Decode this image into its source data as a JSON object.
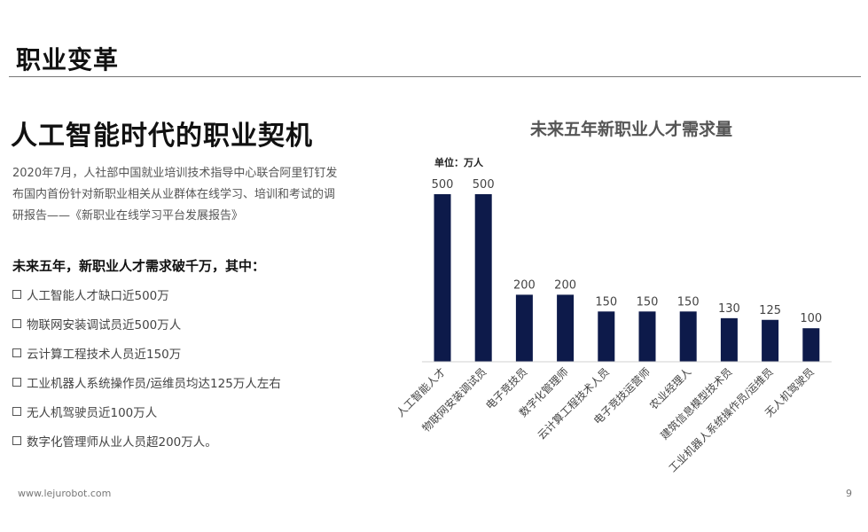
{
  "header": {
    "title": "职业变革"
  },
  "main": {
    "heading": "人工智能时代的职业契机",
    "intro_lines": [
      "2020年7月，人社部中国就业培训技术指导中心联合阿里钉钉发",
      "布国内首份针对新职业相关从业群体在线学习、培训和考试的调",
      "研报告——《新职业在线学习平台发展报告》"
    ],
    "subheading": "未来五年，新职业人才需求破千万，其中：",
    "bullets": [
      "人工智能人才缺口近500万",
      "物联网安装调试员近500万人",
      "云计算工程技术人员近150万",
      "工业机器人系统操作员/运维员均达125万人左右",
      "无人机驾驶员近100万人",
      "数字化管理师从业人员超200万人。"
    ]
  },
  "footer": {
    "url": "www.lejurobot.com",
    "page": "9"
  },
  "chart_data": {
    "type": "bar",
    "title": "未来五年新职业人才需求量",
    "unit_label": "单位：万人",
    "categories": [
      "人工智能人才",
      "物联网安装调试员",
      "电子竞技员",
      "数字化管理师",
      "云计算工程技术人员",
      "电子竞技运营师",
      "农业经理人",
      "建筑信息模型技术员",
      "工业机器人系统操作员/运维员",
      "无人机驾驶员"
    ],
    "values": [
      500,
      500,
      200,
      200,
      150,
      150,
      150,
      130,
      125,
      100
    ],
    "ylim": [
      0,
      500
    ],
    "grid": false,
    "bar_color": "#0d1a4a",
    "value_color": "#444444",
    "label_color": "#444444"
  }
}
